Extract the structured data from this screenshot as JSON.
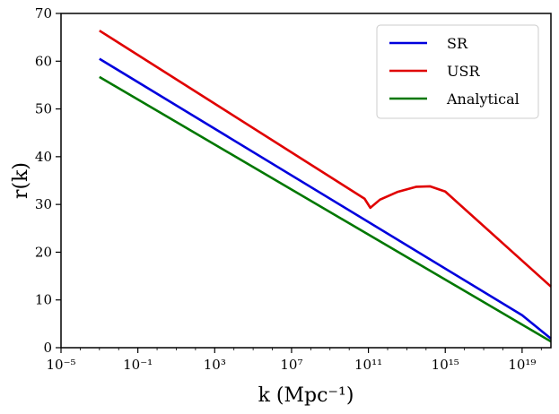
{
  "chart_data": {
    "type": "line",
    "title": "",
    "xscale": "log10",
    "xlim_exp": [
      -5,
      20.5
    ],
    "ylim": [
      0,
      70
    ],
    "xlabel": "k (Mpc⁻¹)",
    "ylabel": "r(k)",
    "x_ticks": [
      {
        "exp": -5,
        "label": "10⁻⁵"
      },
      {
        "exp": -1,
        "label": "10⁻¹"
      },
      {
        "exp": 3,
        "label": "10³"
      },
      {
        "exp": 7,
        "label": "10⁷"
      },
      {
        "exp": 11,
        "label": "10¹¹"
      },
      {
        "exp": 15,
        "label": "10¹⁵"
      },
      {
        "exp": 19,
        "label": "10¹⁹"
      }
    ],
    "y_ticks": [
      {
        "value": 0,
        "label": "0"
      },
      {
        "value": 10,
        "label": "10"
      },
      {
        "value": 20,
        "label": "20"
      },
      {
        "value": 30,
        "label": "30"
      },
      {
        "value": 40,
        "label": "40"
      },
      {
        "value": 50,
        "label": "50"
      },
      {
        "value": 60,
        "label": "60"
      },
      {
        "value": 70,
        "label": "70"
      }
    ],
    "legend_position": "top-right",
    "series": [
      {
        "name": "SR",
        "color": "#0000dd",
        "points": [
          [
            -3,
            60.5
          ],
          [
            19,
            6.8
          ],
          [
            20.5,
            1.9
          ]
        ]
      },
      {
        "name": "USR",
        "color": "#e00000",
        "points": [
          [
            -3,
            66.4
          ],
          [
            10.8,
            31.2
          ],
          [
            11.1,
            29.3
          ],
          [
            11.6,
            31.0
          ],
          [
            12.5,
            32.6
          ],
          [
            13.5,
            33.7
          ],
          [
            14.2,
            33.8
          ],
          [
            15.0,
            32.7
          ],
          [
            20.5,
            12.8
          ]
        ]
      },
      {
        "name": "Analytical",
        "color": "#007700",
        "points": [
          [
            -3,
            56.7
          ],
          [
            20.5,
            1.3
          ]
        ]
      }
    ]
  }
}
